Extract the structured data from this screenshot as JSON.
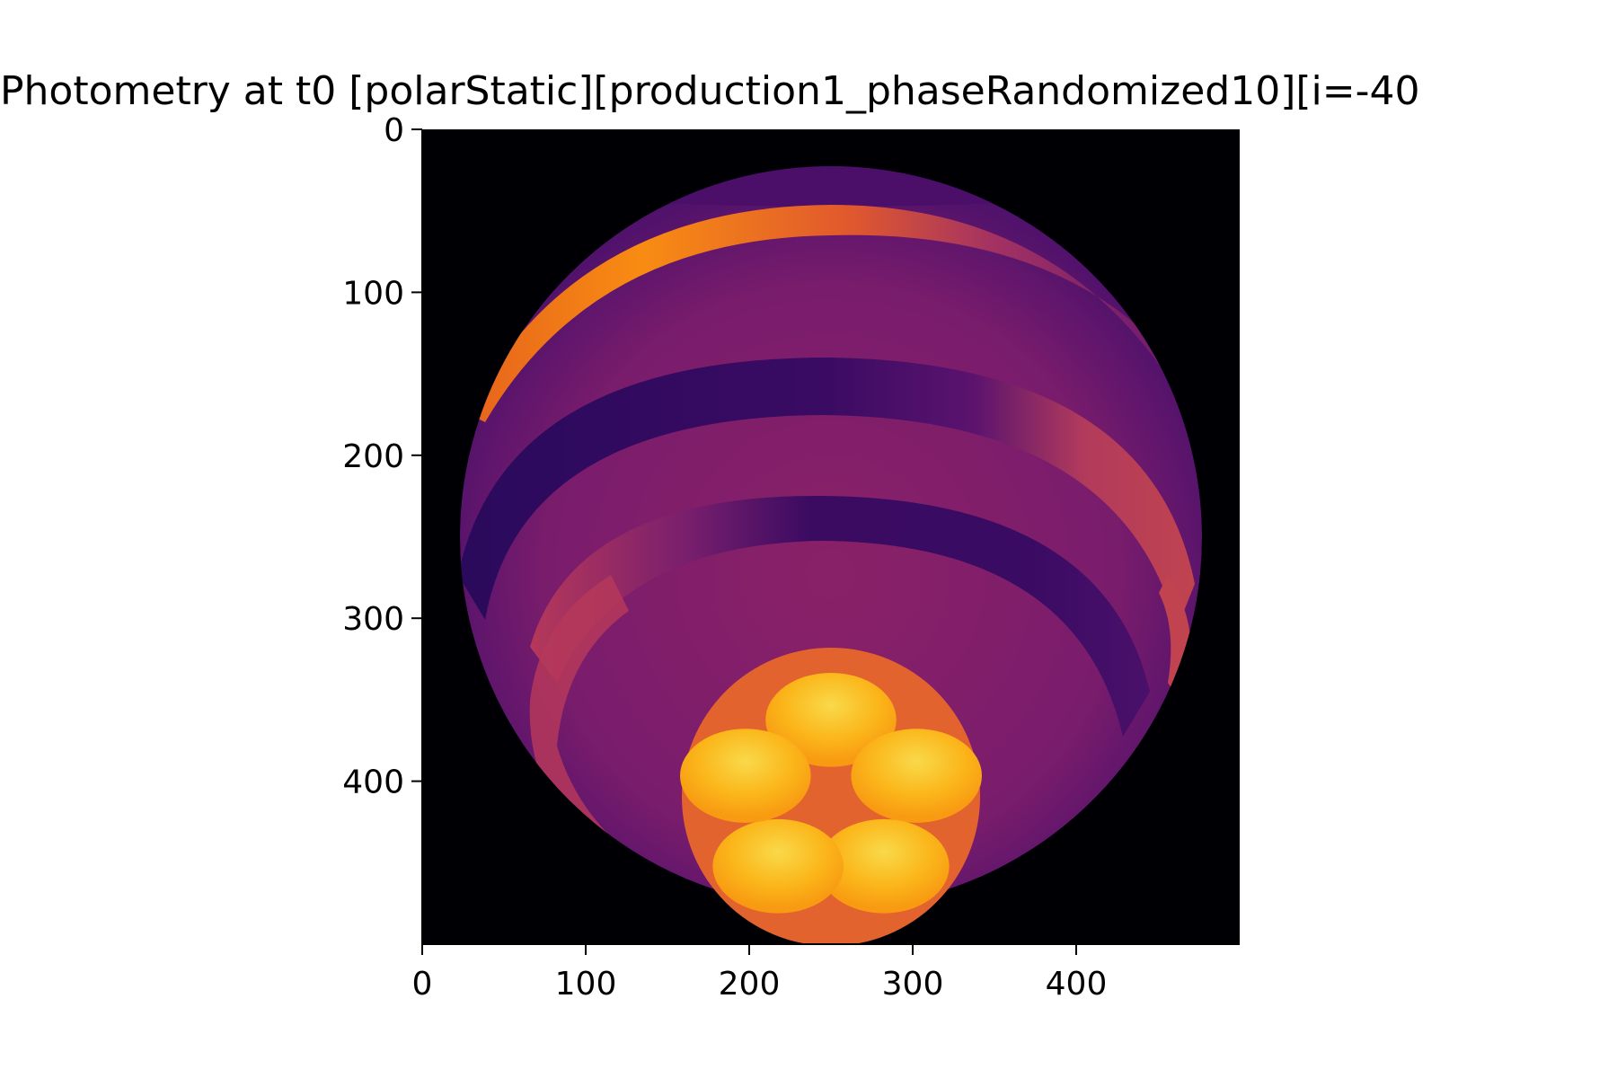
{
  "chart_data": {
    "type": "heatmap",
    "title": "Photometry at t0 [polarStatic][production1_phaseRandomized10][i=-40",
    "xlabel": "",
    "ylabel": "",
    "xlim": [
      0,
      500
    ],
    "ylim": [
      500,
      0
    ],
    "x_ticks": [
      0,
      100,
      200,
      300,
      400
    ],
    "y_ticks": [
      0,
      100,
      200,
      300,
      400
    ],
    "colormap": "inferno",
    "background_value": 0,
    "image": {
      "disk_center": [
        250,
        250
      ],
      "disk_radius": 226,
      "bands": [
        {
          "name": "bright arc",
          "center_y": 68,
          "half_width": 12,
          "value": 0.75
        },
        {
          "name": "dark band",
          "center_y": 180,
          "half_width": 18,
          "value": 0.15
        },
        {
          "name": "dark band",
          "center_y": 268,
          "half_width": 14,
          "value": 0.15
        },
        {
          "name": "red rim",
          "center_y": 320,
          "half_width": 10,
          "value": 0.5
        }
      ],
      "spot": {
        "center": [
          250,
          412
        ],
        "radius": 92,
        "value": 0.7
      },
      "spot_lobes": {
        "count": 5,
        "ring_radius": 55,
        "lobe_radius": 25,
        "value": 0.95
      }
    }
  }
}
